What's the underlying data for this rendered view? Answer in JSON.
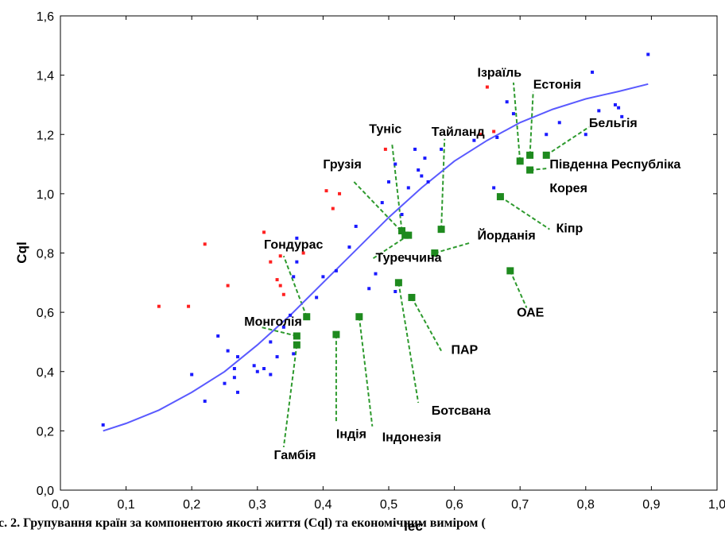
{
  "chart_data": {
    "type": "scatter",
    "title": "",
    "xlabel": "Iec",
    "ylabel": "Cql",
    "xlim": [
      0.0,
      1.0
    ],
    "ylim": [
      0.0,
      1.6
    ],
    "x_ticks": [
      "0,0",
      "0,1",
      "0,2",
      "0,3",
      "0,4",
      "0,5",
      "0,6",
      "0,7",
      "0,8",
      "0,9",
      "1,0"
    ],
    "y_ticks": [
      "0,0",
      "0,2",
      "0,4",
      "0,6",
      "0,8",
      "1,0",
      "1,2",
      "1,4",
      "1,6"
    ],
    "grid": false,
    "caption": "с. 2. Групування країн за компонентою якості життя (Cql) та економічним виміром (",
    "colors": {
      "blue": "#1a1aff",
      "red": "#ff2020",
      "green": "#1e8a1e",
      "curve": "#5a5aff",
      "leader": "#2e9a2e"
    },
    "fit_curve": [
      [
        0.065,
        0.2
      ],
      [
        0.1,
        0.225
      ],
      [
        0.15,
        0.27
      ],
      [
        0.2,
        0.33
      ],
      [
        0.25,
        0.4
      ],
      [
        0.3,
        0.49
      ],
      [
        0.35,
        0.59
      ],
      [
        0.4,
        0.7
      ],
      [
        0.45,
        0.81
      ],
      [
        0.5,
        0.92
      ],
      [
        0.55,
        1.02
      ],
      [
        0.6,
        1.11
      ],
      [
        0.65,
        1.18
      ],
      [
        0.7,
        1.24
      ],
      [
        0.75,
        1.285
      ],
      [
        0.8,
        1.32
      ],
      [
        0.85,
        1.345
      ],
      [
        0.895,
        1.37
      ]
    ],
    "series": [
      {
        "name": "",
        "color": "blue",
        "points": [
          [
            0.065,
            0.22
          ],
          [
            0.2,
            0.39
          ],
          [
            0.22,
            0.3
          ],
          [
            0.24,
            0.52
          ],
          [
            0.25,
            0.36
          ],
          [
            0.255,
            0.47
          ],
          [
            0.265,
            0.41
          ],
          [
            0.265,
            0.38
          ],
          [
            0.27,
            0.45
          ],
          [
            0.27,
            0.33
          ],
          [
            0.295,
            0.42
          ],
          [
            0.3,
            0.4
          ],
          [
            0.31,
            0.41
          ],
          [
            0.32,
            0.5
          ],
          [
            0.32,
            0.39
          ],
          [
            0.33,
            0.45
          ],
          [
            0.34,
            0.55
          ],
          [
            0.35,
            0.59
          ],
          [
            0.355,
            0.46
          ],
          [
            0.355,
            0.72
          ],
          [
            0.36,
            0.77
          ],
          [
            0.36,
            0.85
          ],
          [
            0.39,
            0.65
          ],
          [
            0.4,
            0.72
          ],
          [
            0.42,
            0.74
          ],
          [
            0.44,
            0.82
          ],
          [
            0.45,
            0.89
          ],
          [
            0.47,
            0.68
          ],
          [
            0.48,
            0.73
          ],
          [
            0.49,
            0.97
          ],
          [
            0.5,
            1.04
          ],
          [
            0.51,
            1.1
          ],
          [
            0.51,
            0.67
          ],
          [
            0.52,
            0.93
          ],
          [
            0.53,
            1.02
          ],
          [
            0.54,
            1.15
          ],
          [
            0.545,
            1.08
          ],
          [
            0.55,
            1.06
          ],
          [
            0.555,
            1.12
          ],
          [
            0.56,
            1.04
          ],
          [
            0.58,
            1.15
          ],
          [
            0.63,
            1.18
          ],
          [
            0.66,
            1.02
          ],
          [
            0.665,
            1.19
          ],
          [
            0.68,
            1.31
          ],
          [
            0.69,
            1.27
          ],
          [
            0.74,
            1.2
          ],
          [
            0.76,
            1.24
          ],
          [
            0.8,
            1.2
          ],
          [
            0.81,
            1.41
          ],
          [
            0.82,
            1.28
          ],
          [
            0.845,
            1.3
          ],
          [
            0.85,
            1.29
          ],
          [
            0.855,
            1.26
          ],
          [
            0.895,
            1.47
          ]
        ]
      },
      {
        "name": "",
        "color": "red",
        "points": [
          [
            0.15,
            0.62
          ],
          [
            0.195,
            0.62
          ],
          [
            0.22,
            0.83
          ],
          [
            0.255,
            0.69
          ],
          [
            0.31,
            0.87
          ],
          [
            0.32,
            0.77
          ],
          [
            0.33,
            0.71
          ],
          [
            0.335,
            0.79
          ],
          [
            0.335,
            0.69
          ],
          [
            0.34,
            0.66
          ],
          [
            0.37,
            0.8
          ],
          [
            0.405,
            1.01
          ],
          [
            0.415,
            0.95
          ],
          [
            0.425,
            1.0
          ],
          [
            0.495,
            1.15
          ],
          [
            0.65,
            1.36
          ],
          [
            0.66,
            1.21
          ],
          [
            0.64,
            1.2
          ]
        ]
      },
      {
        "name": "",
        "color": "green",
        "points": [
          [
            0.36,
            0.49
          ],
          [
            0.36,
            0.52
          ],
          [
            0.375,
            0.585
          ],
          [
            0.42,
            0.525
          ],
          [
            0.455,
            0.585
          ],
          [
            0.515,
            0.7
          ],
          [
            0.52,
            0.875
          ],
          [
            0.525,
            0.86
          ],
          [
            0.53,
            0.86
          ],
          [
            0.535,
            0.65
          ],
          [
            0.57,
            0.8
          ],
          [
            0.58,
            0.88
          ],
          [
            0.67,
            0.99
          ],
          [
            0.685,
            0.74
          ],
          [
            0.7,
            1.11
          ],
          [
            0.715,
            1.08
          ],
          [
            0.715,
            1.13
          ],
          [
            0.74,
            1.13
          ]
        ]
      }
    ],
    "annotations": [
      {
        "label": "Ізраїль",
        "point": [
          0.7,
          1.11
        ],
        "text": [
          0.635,
          1.395
        ],
        "leader_to": [
          0.69,
          1.375
        ]
      },
      {
        "label": "Естонія",
        "point": [
          0.715,
          1.13
        ],
        "text": [
          0.72,
          1.355
        ],
        "leader_to": [
          0.72,
          1.345
        ]
      },
      {
        "label": "Бельгія",
        "point": [
          0.74,
          1.13
        ],
        "text": [
          0.805,
          1.225
        ],
        "leader_to": [
          0.805,
          1.225
        ]
      },
      {
        "label": "Південна Республіка",
        "point": [
          0.715,
          1.08
        ],
        "text": [
          0.745,
          1.085
        ],
        "leader_to": [
          0.74,
          1.085
        ]
      },
      {
        "label": "Корея",
        "point": [
          0.715,
          1.08
        ],
        "text": [
          0.745,
          1.005
        ],
        "leader_to": null
      },
      {
        "label": "Туніс",
        "point": [
          0.52,
          0.875
        ],
        "text": [
          0.47,
          1.205
        ],
        "leader_to": [
          0.505,
          1.17
        ]
      },
      {
        "label": "Тайланд",
        "point": [
          0.58,
          0.88
        ],
        "text": [
          0.565,
          1.195
        ],
        "leader_to": [
          0.585,
          1.185
        ]
      },
      {
        "label": "Грузія",
        "point": [
          0.525,
          0.86
        ],
        "text": [
          0.4,
          1.085
        ],
        "leader_to": [
          0.445,
          1.045
        ]
      },
      {
        "label": "Кіпр",
        "point": [
          0.67,
          0.99
        ],
        "text": [
          0.755,
          0.87
        ],
        "leader_to": [
          0.745,
          0.88
        ]
      },
      {
        "label": "Йорданія",
        "point": [
          0.57,
          0.8
        ],
        "text": [
          0.635,
          0.845
        ],
        "leader_to": [
          0.625,
          0.835
        ]
      },
      {
        "label": "Гондурас",
        "point": [
          0.375,
          0.585
        ],
        "text": [
          0.31,
          0.815
        ],
        "leader_to": [
          0.34,
          0.79
        ]
      },
      {
        "label": "Туреччина",
        "point": [
          0.53,
          0.86
        ],
        "text": [
          0.48,
          0.77
        ],
        "leader_to": [
          0.475,
          0.78
        ]
      },
      {
        "label": "Монголія",
        "point": [
          0.36,
          0.52
        ],
        "text": [
          0.28,
          0.555
        ],
        "leader_to": [
          0.305,
          0.55
        ]
      },
      {
        "label": "ОАЕ",
        "point": [
          0.685,
          0.74
        ],
        "text": [
          0.695,
          0.585
        ],
        "leader_to": [
          0.71,
          0.615
        ]
      },
      {
        "label": "ПАР",
        "point": [
          0.535,
          0.65
        ],
        "text": [
          0.595,
          0.46
        ],
        "leader_to": [
          0.58,
          0.47
        ]
      },
      {
        "label": "Ботсвана",
        "point": [
          0.515,
          0.7
        ],
        "text": [
          0.565,
          0.255
        ],
        "leader_to": [
          0.545,
          0.295
        ]
      },
      {
        "label": "Індія",
        "point": [
          0.42,
          0.525
        ],
        "text": [
          0.42,
          0.175
        ],
        "leader_to": [
          0.42,
          0.225
        ]
      },
      {
        "label": "Індонезія",
        "point": [
          0.455,
          0.585
        ],
        "text": [
          0.49,
          0.165
        ],
        "leader_to": [
          0.475,
          0.215
        ]
      },
      {
        "label": "Гамбія",
        "point": [
          0.36,
          0.49
        ],
        "text": [
          0.325,
          0.105
        ],
        "leader_to": [
          0.34,
          0.145
        ]
      }
    ]
  }
}
